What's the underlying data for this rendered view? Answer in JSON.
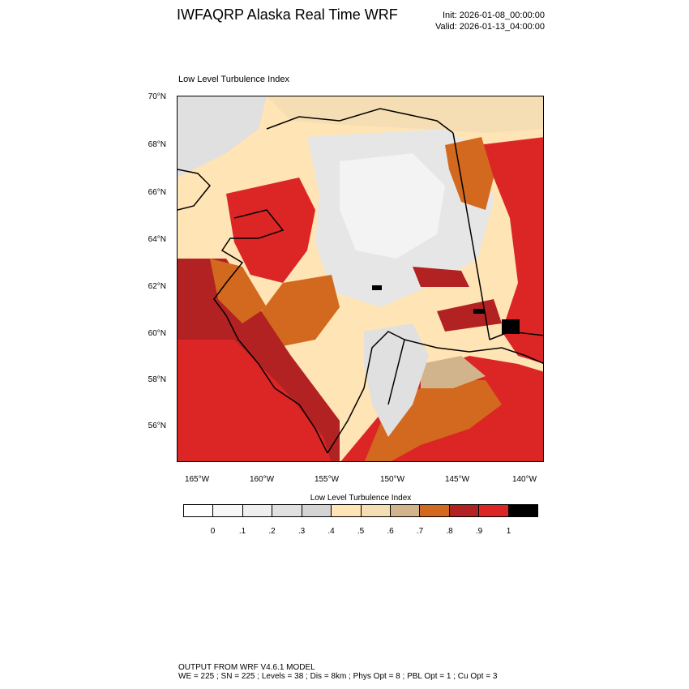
{
  "header": {
    "title": "IWFAQRP Alaska Real Time WRF",
    "init": "Init: 2026-01-08_00:00:00",
    "valid": "Valid: 2026-01-13_04:00:00"
  },
  "plot": {
    "title": "Low Level Turbulence Index"
  },
  "axes": {
    "lat_labels": [
      "70°N",
      "68°N",
      "66°N",
      "64°N",
      "62°N",
      "60°N",
      "58°N",
      "56°N"
    ],
    "lon_labels": [
      "165°W",
      "160°W",
      "155°W",
      "150°W",
      "145°W",
      "140°W"
    ]
  },
  "colorbar": {
    "title": "Low Level Turbulence Index",
    "labels": [
      "0",
      ".1",
      ".2",
      ".3",
      ".4",
      ".5",
      ".6",
      ".7",
      ".8",
      ".9",
      "1"
    ],
    "colors": [
      "#ffffff",
      "#f7f7f7",
      "#efefef",
      "#e0e0e0",
      "#d4d4d4",
      "#ffe4b5",
      "#f5deb3",
      "#d2b48c",
      "#d2691e",
      "#b22222",
      "#dc2626",
      "#000000"
    ]
  },
  "footer": {
    "line1": "OUTPUT FROM WRF V4.6.1 MODEL",
    "line2": "WE = 225 ; SN = 225 ; Levels = 38 ; Dis = 8km ; Phys Opt = 8 ; PBL Opt = 1 ; Cu Opt = 3"
  }
}
